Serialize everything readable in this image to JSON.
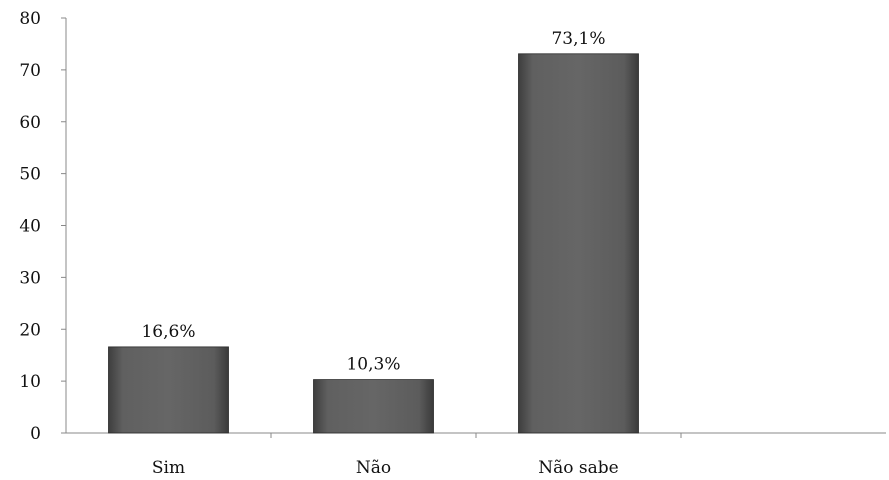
{
  "chart_data": {
    "type": "bar",
    "categories": [
      "Sim",
      "Não",
      "Não sabe"
    ],
    "values": [
      16.6,
      10.3,
      73.1
    ],
    "data_labels": [
      "16,6%",
      "10,3%",
      "73,1%"
    ],
    "yticks": [
      "0",
      "10",
      "20",
      "30",
      "40",
      "50",
      "60",
      "70",
      "80"
    ],
    "ylim": [
      0,
      80
    ],
    "grid": false,
    "legend": "none",
    "bar_color": "#5a5a5a"
  }
}
